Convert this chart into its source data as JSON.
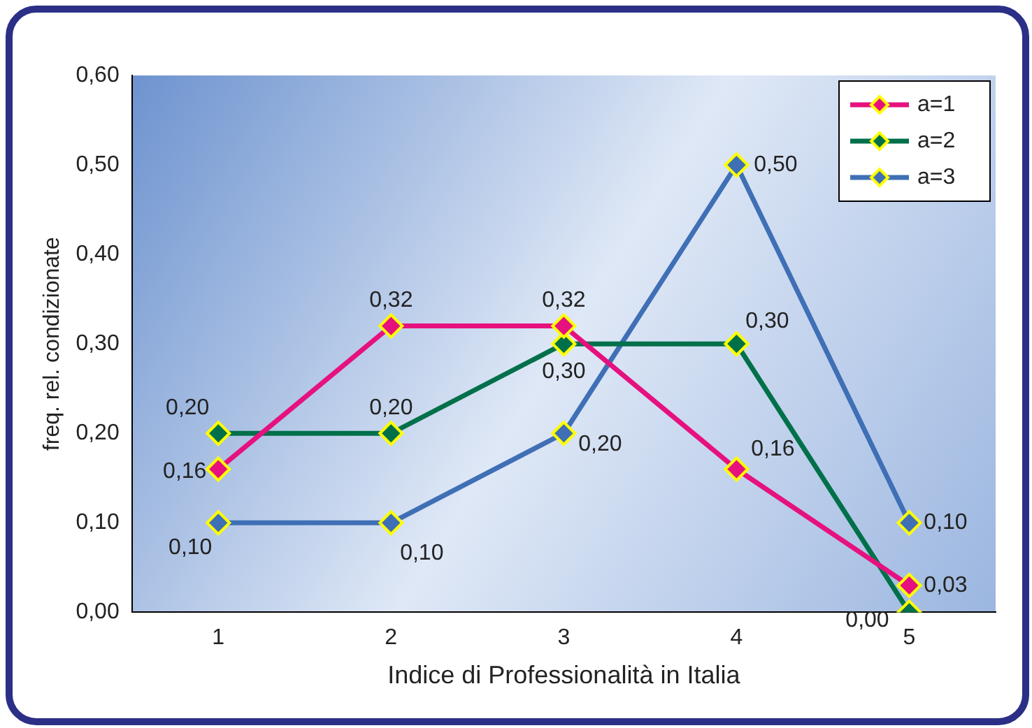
{
  "chart_data": {
    "type": "line",
    "xlabel": "Indice di Professionalità in Italia",
    "ylabel": "freq. rel. condizionate",
    "categories": [
      "1",
      "2",
      "3",
      "4",
      "5"
    ],
    "series": [
      {
        "name": "a=1",
        "color": "#e6117f",
        "values": [
          0.16,
          0.32,
          0.32,
          0.16,
          0.03
        ],
        "value_labels": [
          "0,16",
          "0,32",
          "0,32",
          "0,16",
          "0,03"
        ]
      },
      {
        "name": "a=2",
        "color": "#00704a",
        "values": [
          0.2,
          0.2,
          0.3,
          0.3,
          0.0
        ],
        "value_labels": [
          "0,20",
          "0,20",
          "0,30",
          "0,30",
          "0,00"
        ]
      },
      {
        "name": "a=3",
        "color": "#3f6fb5",
        "values": [
          0.1,
          0.1,
          0.2,
          0.5,
          0.1
        ],
        "value_labels": [
          "0,10",
          "0,10",
          "0,20",
          "0,50",
          "0,10"
        ]
      }
    ],
    "ylim": [
      0,
      0.6
    ],
    "yticks": [
      {
        "value": 0,
        "label": "0,00"
      },
      {
        "value": 0.1,
        "label": "0,10"
      },
      {
        "value": 0.2,
        "label": "0,20"
      },
      {
        "value": 0.3,
        "label": "0,30"
      },
      {
        "value": 0.4,
        "label": "0,40"
      },
      {
        "value": 0.5,
        "label": "0,50"
      },
      {
        "value": 0.6,
        "label": "0,60"
      }
    ],
    "grid": false,
    "legend": "top right",
    "marker": "diamond",
    "line_style": "solid"
  }
}
